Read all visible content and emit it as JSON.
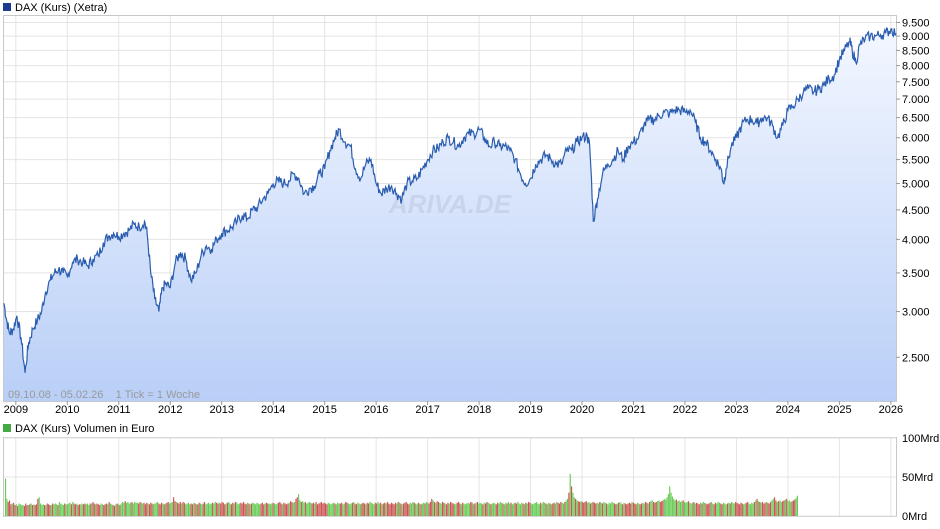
{
  "chart_data": [
    {
      "type": "line",
      "title": "DAX (Kurs) (Xetra)",
      "legend_color": "#1a3c8c",
      "line_color": "#2a5db0",
      "area_top_color": "#f3f7ff",
      "area_bottom_color": "#b9cff7",
      "scale": "log",
      "ylim": [
        2100,
        9750
      ],
      "xlim": [
        2008.77,
        2026.1
      ],
      "y_ticks": [
        {
          "value": 2500,
          "label": "2.500"
        },
        {
          "value": 3000,
          "label": "3.000"
        },
        {
          "value": 3500,
          "label": "3.500"
        },
        {
          "value": 4000,
          "label": "4.000"
        },
        {
          "value": 4500,
          "label": "4.500"
        },
        {
          "value": 5000,
          "label": "5.000"
        },
        {
          "value": 5500,
          "label": "5.500"
        },
        {
          "value": 6000,
          "label": "6.000"
        },
        {
          "value": 6500,
          "label": "6.500"
        },
        {
          "value": 7000,
          "label": "7.000"
        },
        {
          "value": 7500,
          "label": "7.500"
        },
        {
          "value": 8000,
          "label": "8.000"
        },
        {
          "value": 8500,
          "label": "8.500"
        },
        {
          "value": 9000,
          "label": "9.000"
        },
        {
          "value": 9500,
          "label": "9.500"
        }
      ],
      "x_ticks": [
        {
          "value": 2009,
          "label": "2009"
        },
        {
          "value": 2010,
          "label": "2010"
        },
        {
          "value": 2011,
          "label": "2011"
        },
        {
          "value": 2012,
          "label": "2012"
        },
        {
          "value": 2013,
          "label": "2013"
        },
        {
          "value": 2014,
          "label": "2014"
        },
        {
          "value": 2015,
          "label": "2015"
        },
        {
          "value": 2016,
          "label": "2016"
        },
        {
          "value": 2017,
          "label": "2017"
        },
        {
          "value": 2018,
          "label": "2018"
        },
        {
          "value": 2019,
          "label": "2019"
        },
        {
          "value": 2020,
          "label": "2020"
        },
        {
          "value": 2021,
          "label": "2021"
        },
        {
          "value": 2022,
          "label": "2022"
        },
        {
          "value": 2023,
          "label": "2023"
        },
        {
          "value": 2024,
          "label": "2024"
        },
        {
          "value": 2025,
          "label": "2025"
        },
        {
          "value": 2026,
          "label": "2026"
        }
      ],
      "annotation": "09.10.08 - 05.02.26    1 Tick = 1 Woche",
      "watermark": "ARIVA.DE",
      "grid": true,
      "series": [
        {
          "x": [
            2008.77,
            2008.82,
            2008.88,
            2008.95,
            2009.02,
            2009.1,
            2009.18,
            2009.25,
            2009.33,
            2009.42,
            2009.5,
            2009.58,
            2009.67,
            2009.75,
            2009.83,
            2009.92,
            2010.0,
            2010.1,
            2010.2,
            2010.3,
            2010.4,
            2010.5,
            2010.6,
            2010.7,
            2010.8,
            2010.9,
            2011.0,
            2011.1,
            2011.2,
            2011.3,
            2011.4,
            2011.5,
            2011.55,
            2011.62,
            2011.7,
            2011.78,
            2011.85,
            2011.92,
            2012.0,
            2012.1,
            2012.2,
            2012.3,
            2012.4,
            2012.5,
            2012.6,
            2012.7,
            2012.8,
            2012.9,
            2013.0,
            2013.1,
            2013.2,
            2013.3,
            2013.4,
            2013.5,
            2013.6,
            2013.7,
            2013.8,
            2013.9,
            2014.0,
            2014.1,
            2014.2,
            2014.3,
            2014.4,
            2014.5,
            2014.6,
            2014.7,
            2014.8,
            2014.9,
            2015.0,
            2015.1,
            2015.2,
            2015.28,
            2015.4,
            2015.5,
            2015.6,
            2015.7,
            2015.8,
            2015.9,
            2016.0,
            2016.1,
            2016.2,
            2016.3,
            2016.4,
            2016.5,
            2016.6,
            2016.7,
            2016.8,
            2016.9,
            2017.0,
            2017.1,
            2017.2,
            2017.3,
            2017.4,
            2017.5,
            2017.6,
            2017.7,
            2017.8,
            2017.9,
            2018.0,
            2018.1,
            2018.2,
            2018.3,
            2018.4,
            2018.5,
            2018.6,
            2018.7,
            2018.8,
            2018.9,
            2019.0,
            2019.1,
            2019.2,
            2019.3,
            2019.4,
            2019.5,
            2019.6,
            2019.7,
            2019.8,
            2019.9,
            2020.0,
            2020.1,
            2020.15,
            2020.22,
            2020.3,
            2020.4,
            2020.5,
            2020.6,
            2020.7,
            2020.8,
            2020.9,
            2021.0,
            2021.1,
            2021.2,
            2021.3,
            2021.4,
            2021.5,
            2021.6,
            2021.7,
            2021.8,
            2021.9,
            2022.0,
            2022.1,
            2022.2,
            2022.3,
            2022.4,
            2022.5,
            2022.6,
            2022.7,
            2022.75,
            2022.8,
            2022.9,
            2023.0,
            2023.1,
            2023.2,
            2023.3,
            2023.4,
            2023.5,
            2023.6,
            2023.7,
            2023.8,
            2023.9,
            2024.0,
            2024.1,
            2024.2,
            2024.3,
            2024.4,
            2024.5,
            2024.6,
            2024.7,
            2024.8,
            2024.9,
            2025.0,
            2025.1,
            2025.2,
            2025.25,
            2025.32,
            2025.4,
            2025.5,
            2025.6,
            2025.7,
            2025.8,
            2025.9,
            2026.0,
            2026.1
          ],
          "y": [
            3100,
            2900,
            2750,
            2800,
            2950,
            2700,
            2350,
            2650,
            2800,
            2900,
            3000,
            3250,
            3400,
            3500,
            3550,
            3500,
            3450,
            3650,
            3700,
            3650,
            3600,
            3700,
            3750,
            3950,
            4050,
            4100,
            4050,
            4100,
            4150,
            4250,
            4200,
            4300,
            4100,
            3500,
            3150,
            3000,
            3300,
            3350,
            3300,
            3650,
            3800,
            3700,
            3400,
            3500,
            3750,
            3900,
            3850,
            4000,
            4100,
            4150,
            4200,
            4300,
            4400,
            4350,
            4500,
            4550,
            4700,
            4800,
            5000,
            5050,
            5000,
            5050,
            5200,
            5100,
            4800,
            4900,
            4950,
            5200,
            5300,
            5700,
            6000,
            6200,
            5900,
            5800,
            5300,
            5100,
            5400,
            5500,
            5000,
            4800,
            4900,
            4950,
            4800,
            4700,
            5000,
            5050,
            5100,
            5300,
            5500,
            5700,
            5750,
            5900,
            6000,
            5900,
            5800,
            6000,
            6100,
            6100,
            6200,
            6000,
            5800,
            5900,
            5800,
            5800,
            5700,
            5500,
            5200,
            5000,
            5100,
            5400,
            5500,
            5600,
            5500,
            5400,
            5400,
            5700,
            5700,
            5900,
            6000,
            6050,
            5800,
            4300,
            4700,
            5200,
            5400,
            5500,
            5700,
            5500,
            5800,
            5900,
            6000,
            6300,
            6450,
            6450,
            6550,
            6650,
            6600,
            6700,
            6700,
            6650,
            6700,
            6400,
            6000,
            5900,
            5700,
            5500,
            5300,
            5000,
            5300,
            5800,
            6000,
            6300,
            6450,
            6450,
            6350,
            6500,
            6500,
            6300,
            6000,
            6300,
            6700,
            6800,
            7000,
            7200,
            7300,
            7200,
            7300,
            7400,
            7600,
            7700,
            8200,
            8500,
            8800,
            8500,
            8100,
            8700,
            8900,
            9000,
            9000,
            9050,
            9100,
            9250,
            9100
          ]
        }
      ]
    },
    {
      "type": "bar",
      "title": "DAX (Kurs) Volumen in Euro",
      "legend_color": "#44aa44",
      "up_color": "#66cc55",
      "down_color": "#cc5555",
      "ylim": [
        0,
        100
      ],
      "y_ticks": [
        {
          "value": 0,
          "label": "0Mrd"
        },
        {
          "value": 50,
          "label": "50Mrd"
        },
        {
          "value": 100,
          "label": "100Mrd"
        }
      ],
      "xlim": [
        2008.77,
        2026.1
      ],
      "values": [
        48,
        22,
        18,
        20,
        15,
        16,
        17,
        14,
        15,
        13,
        16,
        15,
        14,
        14,
        13,
        16,
        14,
        14,
        15,
        16,
        14,
        15,
        14,
        15,
        22,
        24,
        16,
        14,
        15,
        14,
        14,
        16,
        15,
        14,
        14,
        16,
        15,
        16,
        15,
        14,
        18,
        16,
        15,
        14,
        16,
        15,
        15,
        16,
        17,
        15,
        18,
        16,
        15,
        16,
        14,
        15,
        15,
        16,
        15,
        16,
        15,
        16,
        14,
        16,
        16,
        18,
        16,
        15,
        16,
        15,
        14,
        16,
        15,
        14,
        15,
        16,
        15,
        18,
        16,
        15,
        14,
        13,
        15,
        16,
        15,
        14,
        16,
        18,
        17,
        19,
        17,
        18,
        16,
        17,
        18,
        16,
        18,
        17,
        17,
        16,
        18,
        17,
        16,
        17,
        15,
        17,
        16,
        15,
        17,
        16,
        15,
        16,
        17,
        18,
        16,
        15,
        17,
        16,
        15,
        16,
        17,
        18,
        16,
        17,
        18,
        24,
        19,
        18,
        17,
        16,
        18,
        16,
        18,
        17,
        15,
        16,
        17,
        15,
        16,
        15,
        17,
        16,
        15,
        15,
        17,
        16,
        15,
        16,
        18,
        15,
        16,
        17,
        15,
        16,
        17,
        16,
        18,
        17,
        16,
        17,
        16,
        18,
        17,
        15,
        16,
        17,
        18,
        16,
        15,
        17,
        16,
        18,
        17,
        15,
        16,
        17,
        16,
        18,
        16,
        15,
        17,
        16,
        15,
        16,
        17,
        16,
        15,
        17,
        16,
        15,
        16,
        17,
        15,
        16,
        17,
        16,
        16,
        15,
        16,
        17,
        16,
        15,
        16,
        17,
        18,
        16,
        15,
        17,
        16,
        15,
        16,
        17,
        19,
        18,
        17,
        18,
        22,
        24,
        28,
        20,
        18,
        19,
        17,
        18,
        16,
        17,
        18,
        17,
        16,
        17,
        16,
        18,
        15,
        16,
        17,
        18,
        16,
        17,
        16,
        15,
        17,
        16,
        15,
        16,
        17,
        16,
        15,
        17,
        16,
        16,
        17,
        15,
        16,
        18,
        17,
        16,
        15,
        16,
        17,
        18,
        16,
        15,
        17,
        16,
        15,
        16,
        17,
        16,
        15,
        17,
        16,
        18,
        17,
        16,
        15,
        17,
        16,
        18,
        16,
        17,
        15,
        16,
        17,
        16,
        18,
        16,
        15,
        17,
        16,
        15,
        17,
        16,
        18,
        17,
        16,
        15,
        16,
        17,
        18,
        16,
        15,
        17,
        16,
        18,
        17,
        16,
        15,
        17,
        16,
        15,
        16,
        17,
        16,
        18,
        17,
        16,
        18,
        22,
        20,
        18,
        17,
        19,
        18,
        17,
        16,
        18,
        17,
        16,
        15,
        17,
        16,
        18,
        17,
        16,
        15,
        16,
        17,
        18,
        16,
        15,
        17,
        16,
        15,
        16,
        17,
        16,
        18,
        17,
        15,
        16,
        17,
        18,
        16,
        17,
        16,
        15,
        17,
        16,
        18,
        17,
        16,
        15,
        16,
        17,
        16,
        15,
        17,
        16,
        18,
        17,
        16,
        15,
        17,
        16,
        18,
        16,
        17,
        15,
        16,
        17,
        16,
        18,
        16,
        15,
        17,
        16,
        15,
        17,
        16,
        18,
        17,
        16,
        15,
        16,
        17,
        18,
        16,
        15,
        17,
        16,
        18,
        17,
        16,
        15,
        17,
        16,
        15,
        16,
        17,
        16,
        18,
        17,
        16,
        18,
        17,
        16,
        18,
        20,
        22,
        30,
        54,
        38,
        30,
        24,
        22,
        20,
        19,
        18,
        19,
        18,
        17,
        18,
        19,
        17,
        18,
        16,
        17,
        18,
        17,
        16,
        17,
        16,
        18,
        17,
        16,
        18,
        17,
        16,
        15,
        17,
        16,
        18,
        17,
        16,
        15,
        16,
        17,
        18,
        16,
        15,
        17,
        16,
        15,
        16,
        17,
        16,
        18,
        17,
        16,
        15,
        17,
        16,
        15,
        16,
        17,
        16,
        18,
        17,
        16,
        18,
        19,
        20,
        18,
        17,
        18,
        19,
        20,
        18,
        19,
        20,
        22,
        21,
        24,
        28,
        38,
        30,
        25,
        22,
        20,
        21,
        19,
        20,
        18,
        19,
        20,
        18,
        17,
        18,
        19,
        17,
        16,
        17,
        18,
        16,
        17,
        16,
        15,
        17,
        16,
        18,
        17,
        16,
        15,
        16,
        17,
        18,
        16,
        15,
        17,
        16,
        18,
        17,
        16,
        15,
        17,
        16,
        15,
        16,
        17,
        16,
        18,
        17,
        16,
        18,
        17,
        16,
        15,
        17,
        16,
        15,
        16,
        17,
        18,
        16,
        15,
        17,
        16,
        18,
        20,
        22,
        19,
        18,
        17,
        18,
        16,
        17,
        18,
        17,
        16,
        18,
        20,
        22,
        24,
        20,
        18,
        19,
        20,
        18,
        19,
        20,
        21,
        22,
        19,
        20,
        18,
        19,
        20,
        21,
        23,
        26
      ]
    }
  ]
}
